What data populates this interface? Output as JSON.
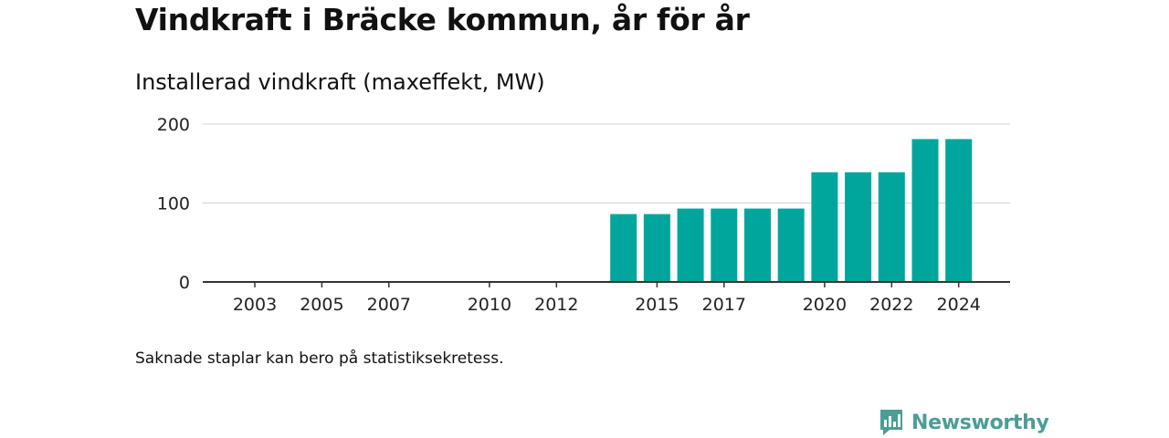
{
  "title": "Vindkraft i Bräcke kommun, år för år",
  "subtitle": "Installerad vindkraft (maxeffekt, MW)",
  "footnote": "Saknade staplar kan bero på statistiksekretess.",
  "brand": {
    "name": "Newsworthy",
    "logo_icon": "newsworthy-logo-icon",
    "color": "#4a9e95"
  },
  "chart_data": {
    "type": "bar",
    "categories": [
      "2003",
      "2004",
      "2005",
      "2006",
      "2007",
      "2008",
      "2009",
      "2010",
      "2011",
      "2012",
      "2013",
      "2014",
      "2015",
      "2016",
      "2017",
      "2018",
      "2019",
      "2020",
      "2021",
      "2022",
      "2023",
      "2024"
    ],
    "values": [
      0,
      0,
      0,
      0,
      0,
      0,
      0,
      0,
      0,
      0,
      0,
      86,
      86,
      93,
      93,
      93,
      93,
      139,
      139,
      139,
      181,
      181
    ],
    "x_tick_labels": [
      "2003",
      "2005",
      "2007",
      "2010",
      "2012",
      "2015",
      "2017",
      "2020",
      "2022",
      "2024"
    ],
    "y_ticks": [
      0,
      100,
      200
    ],
    "ylim": [
      0,
      200
    ],
    "bar_color": "#00a69c",
    "grid": true,
    "xlabel": "",
    "ylabel": ""
  }
}
